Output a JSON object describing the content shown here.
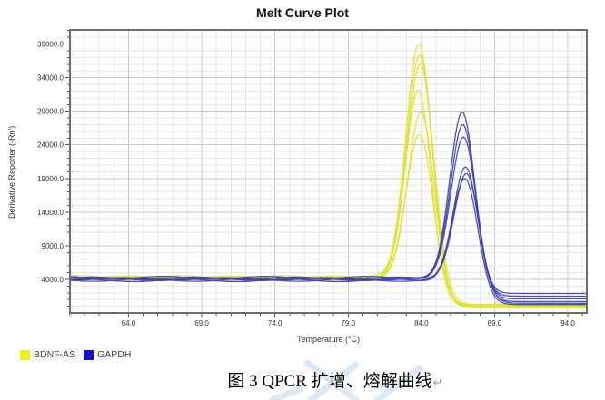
{
  "chart_data": {
    "type": "line",
    "title": "Melt Curve Plot",
    "xlabel": "Temperature (°C)",
    "ylabel": "Derivative Reporter (-Rn')",
    "xlim": [
      60.0,
      95.3
    ],
    "ylim": [
      -1000,
      41100
    ],
    "grid": true,
    "x_major_ticks": [
      64,
      69,
      74,
      79,
      84,
      89,
      94
    ],
    "x_tick_labels": [
      "64.0",
      "69.0",
      "74.0",
      "79.0",
      "84.0",
      "89.0",
      "94.0"
    ],
    "x_minor_step": 1,
    "y_major_ticks": [
      4000,
      9000,
      14000,
      19000,
      24000,
      29000,
      34000,
      39000
    ],
    "y_tick_labels": [
      "4000.0",
      "9000.0",
      "14000.0",
      "19000.0",
      "24000.0",
      "29000.0",
      "34000.0",
      "39000.0"
    ],
    "y_minor_step": 1000,
    "legend_position": "bottom-left",
    "series": [
      {
        "name": "BDNF-AS",
        "color": "#E2E22E",
        "approx_melt_temp_c": 83.9,
        "approx_baseline": 4200,
        "replicates": [
          {
            "tm": 83.85,
            "peak": 39000,
            "sigma": 0.9,
            "baseline": 4300,
            "tail": 100,
            "phase": 0.5
          },
          {
            "tm": 83.9,
            "peak": 37200,
            "sigma": 0.9,
            "baseline": 4200,
            "tail": -100,
            "phase": 2.1
          },
          {
            "tm": 83.95,
            "peak": 36100,
            "sigma": 0.92,
            "baseline": 4350,
            "tail": 250,
            "phase": 3.6
          },
          {
            "tm": 83.8,
            "peak": 32300,
            "sigma": 0.88,
            "baseline": 4100,
            "tail": 0,
            "phase": 5.0
          },
          {
            "tm": 84.0,
            "peak": 28700,
            "sigma": 0.9,
            "baseline": 4250,
            "tail": -250,
            "phase": 1.3
          },
          {
            "tm": 83.9,
            "peak": 25700,
            "sigma": 0.92,
            "baseline": 3950,
            "tail": 150,
            "phase": 4.2
          }
        ]
      },
      {
        "name": "GAPDH",
        "color": "#4040B5",
        "approx_melt_temp_c": 86.9,
        "approx_baseline": 4000,
        "replicates": [
          {
            "tm": 86.8,
            "peak": 29000,
            "sigma": 0.85,
            "baseline": 4150,
            "tail": 1900,
            "phase": 2.8
          },
          {
            "tm": 86.85,
            "peak": 27100,
            "sigma": 0.85,
            "baseline": 4050,
            "tail": 1500,
            "phase": 0.9
          },
          {
            "tm": 86.9,
            "peak": 25000,
            "sigma": 0.87,
            "baseline": 4250,
            "tail": 1100,
            "phase": 4.7
          },
          {
            "tm": 87.05,
            "peak": 20600,
            "sigma": 0.84,
            "baseline": 3900,
            "tail": 700,
            "phase": 5.8
          },
          {
            "tm": 87.1,
            "peak": 19900,
            "sigma": 0.85,
            "baseline": 4000,
            "tail": 450,
            "phase": 1.9
          },
          {
            "tm": 87.0,
            "peak": 19000,
            "sigma": 0.86,
            "baseline": 3850,
            "tail": 250,
            "phase": 3.3
          }
        ]
      }
    ]
  },
  "legend": {
    "items": [
      {
        "label": "BDNF-AS",
        "color": "#EFEF18"
      },
      {
        "label": "GAPDH",
        "color": "#1414CE"
      }
    ]
  },
  "caption": {
    "text": "图 3 QPCR 扩增、熔解曲线",
    "paragraph_mark": "↵"
  },
  "colors": {
    "plot_border": "#6e6e6e",
    "grid_minor": "#e6e6e6",
    "grid_major": "#c9c9c9",
    "tick": "#555555",
    "tick_label": "#333333",
    "watermark": "#ccdff1"
  }
}
